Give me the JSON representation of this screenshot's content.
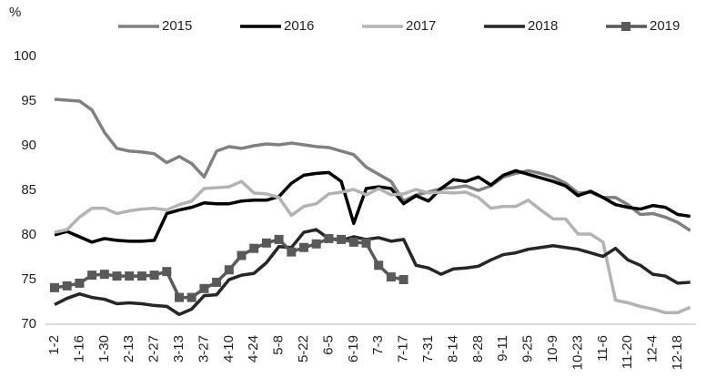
{
  "chart_data": {
    "type": "line",
    "y_label": "%",
    "categories": [
      "1-2",
      null,
      "1-16",
      null,
      "1-30",
      null,
      "2-13",
      null,
      "2-27",
      null,
      "3-13",
      null,
      "3-27",
      null,
      "4-10",
      null,
      "4-24",
      null,
      "5-8",
      null,
      "5-22",
      null,
      "6-5",
      null,
      "6-19",
      null,
      "7-3",
      null,
      "7-17",
      null,
      "7-31",
      null,
      "8-14",
      null,
      "8-28",
      null,
      "9-11",
      null,
      "9-25",
      null,
      "10-9",
      null,
      "10-23",
      null,
      "11-6",
      null,
      "11-20",
      null,
      "12-4",
      null,
      "12-18",
      null
    ],
    "ylim": [
      70,
      100
    ],
    "yticks": [
      70,
      75,
      80,
      85,
      90,
      95,
      100
    ],
    "grid": false,
    "legend": "top",
    "series": [
      {
        "name": "2015",
        "color": "#808080",
        "marker": "none",
        "values": [
          95.2,
          95.1,
          95.0,
          94.0,
          91.5,
          89.7,
          89.4,
          89.3,
          89.1,
          88.1,
          88.8,
          88.0,
          86.5,
          89.4,
          89.9,
          89.7,
          90.0,
          90.2,
          90.1,
          90.3,
          90.1,
          89.9,
          89.8,
          89.4,
          89.0,
          87.6,
          86.8,
          86.0,
          83.8,
          84.5,
          84.8,
          85.2,
          85.3,
          85.5,
          85.0,
          85.5,
          86.5,
          86.9,
          87.2,
          86.9,
          86.5,
          85.8,
          84.7,
          84.8,
          84.2,
          84.2,
          83.4,
          82.3,
          82.4,
          82.0,
          81.4,
          80.5
        ]
      },
      {
        "name": "2016",
        "color": "#000000",
        "marker": "none",
        "values": [
          80.0,
          80.4,
          79.8,
          79.2,
          79.6,
          79.4,
          79.3,
          79.3,
          79.4,
          82.4,
          82.8,
          83.1,
          83.6,
          83.5,
          83.5,
          83.8,
          83.9,
          83.9,
          84.3,
          85.8,
          86.7,
          86.9,
          87.0,
          86.0,
          81.3,
          85.2,
          85.4,
          85.2,
          83.5,
          84.4,
          83.8,
          85.2,
          86.2,
          86.0,
          86.5,
          85.6,
          86.7,
          87.2,
          86.8,
          86.4,
          86.0,
          85.5,
          84.4,
          84.9,
          84.2,
          83.4,
          83.1,
          82.9,
          83.3,
          83.1,
          82.3,
          82.1
        ]
      },
      {
        "name": "2017",
        "color": "#b3b3b3",
        "marker": "none",
        "values": [
          80.3,
          80.6,
          82.0,
          83.0,
          83.0,
          82.4,
          82.7,
          82.9,
          83.0,
          82.8,
          83.4,
          83.8,
          85.2,
          85.3,
          85.4,
          86.0,
          84.7,
          84.6,
          84.2,
          82.2,
          83.2,
          83.5,
          84.6,
          84.8,
          85.1,
          84.5,
          85.2,
          84.5,
          84.6,
          85.1,
          84.7,
          84.8,
          84.7,
          84.8,
          84.2,
          83.0,
          83.2,
          83.2,
          83.9,
          82.8,
          81.8,
          81.8,
          80.1,
          80.1,
          79.2,
          72.7,
          72.4,
          72.0,
          71.7,
          71.3,
          71.3,
          71.9
        ]
      },
      {
        "name": "2018",
        "color": "#262626",
        "marker": "none",
        "values": [
          72.2,
          72.9,
          73.4,
          73.0,
          72.8,
          72.3,
          72.4,
          72.3,
          72.1,
          72.0,
          71.1,
          71.7,
          73.2,
          73.3,
          75.0,
          75.5,
          75.7,
          76.9,
          78.7,
          78.6,
          80.3,
          80.6,
          79.6,
          79.4,
          79.8,
          79.5,
          79.7,
          79.3,
          79.5,
          76.6,
          76.3,
          75.6,
          76.2,
          76.3,
          76.5,
          77.2,
          77.8,
          78.0,
          78.4,
          78.6,
          78.8,
          78.6,
          78.4,
          78.0,
          77.6,
          78.5,
          77.2,
          76.6,
          75.6,
          75.4,
          74.6,
          74.7
        ]
      },
      {
        "name": "2019",
        "color": "#595959",
        "marker": "square",
        "values": [
          74.1,
          74.3,
          74.6,
          75.5,
          75.6,
          75.4,
          75.4,
          75.4,
          75.5,
          75.9,
          73.0,
          73.0,
          74.0,
          74.7,
          76.1,
          77.7,
          78.5,
          79.1,
          79.5,
          78.1,
          78.6,
          79.0,
          79.6,
          79.5,
          79.2,
          79.1,
          76.6,
          75.3,
          75.0,
          null,
          null,
          null,
          null,
          null,
          null,
          null,
          null,
          null,
          null,
          null,
          null,
          null,
          null,
          null,
          null,
          null,
          null,
          null,
          null,
          null,
          null,
          null
        ]
      }
    ]
  }
}
